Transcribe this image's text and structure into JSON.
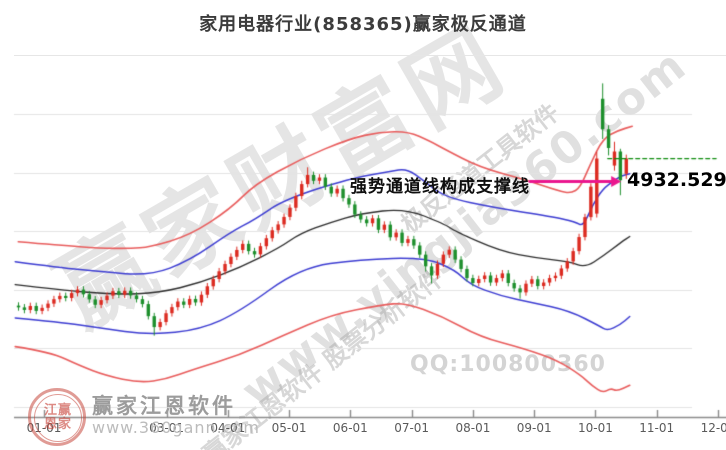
{
  "header": {
    "title": "家用电器行业(858365)赢家极反通道"
  },
  "annotation": {
    "text": "强势通道线构成支撑线",
    "value_label": "4932.5294",
    "value": 4932.5294,
    "arrow": {
      "from_d": 8.93,
      "to_d": 10.42,
      "v": 4925
    }
  },
  "watermarks": {
    "big": "赢家财富网",
    "site_diagonal": "www.yingjia360.com",
    "diag_a": "赢家江恩软件 股票分析软件",
    "diag_b": "极反通道工具软件",
    "qq": "QQ:100800360",
    "footer_brand": "赢家江恩软件",
    "footer_site": "www.360gann.com",
    "logo_rows": [
      "江赢",
      "恩家"
    ]
  },
  "colors": {
    "up": "#dc2a20",
    "down": "#1d8f2c",
    "channel_red": "#e85b5b",
    "channel_blue": "#3b3bd1",
    "mid_black": "#2a2a2a",
    "dash_green": "#0a8a0a",
    "arrow": "#ea168e",
    "grid": "#e3e3e3",
    "axis_line": "#8a8a8a"
  },
  "axis": {
    "y_ticks": [
      5500,
      5000,
      4500,
      4000,
      3500,
      3000
    ],
    "y_min": 3000,
    "y_max": 5500,
    "x_ticks": [
      {
        "m": 1,
        "label": "01-01"
      },
      {
        "m": 3,
        "label": "03-01"
      },
      {
        "m": 4,
        "label": "04-01"
      },
      {
        "m": 5,
        "label": "05-01"
      },
      {
        "m": 6,
        "label": "06-01"
      },
      {
        "m": 7,
        "label": "07-01"
      },
      {
        "m": 8,
        "label": "08-01"
      },
      {
        "m": 9,
        "label": "09-01"
      },
      {
        "m": 10,
        "label": "10-01"
      },
      {
        "m": 11,
        "label": "11-01"
      },
      {
        "m": 12,
        "label": "12-01"
      }
    ]
  },
  "chart_data": {
    "type": "candlestick",
    "title": "家用电器行业(858365)赢家极反通道",
    "x_axis_months": [
      1,
      12
    ],
    "ylim": [
      3000,
      5500
    ],
    "grid": true,
    "candle_start_d": 0.576,
    "candle_step_d": 0.0963,
    "candles_ohlc": [
      [
        3865,
        3890,
        3825,
        3850
      ],
      [
        3850,
        3875,
        3803,
        3828
      ],
      [
        3828,
        3887,
        3803,
        3862
      ],
      [
        3862,
        3887,
        3795,
        3820
      ],
      [
        3820,
        3871,
        3795,
        3846
      ],
      [
        3846,
        3907,
        3821,
        3882
      ],
      [
        3882,
        3945,
        3857,
        3920
      ],
      [
        3920,
        3973,
        3895,
        3948
      ],
      [
        3948,
        3973,
        3905,
        3930
      ],
      [
        3930,
        3997,
        3905,
        3972
      ],
      [
        3972,
        4027,
        3947,
        4002
      ],
      [
        4002,
        4027,
        3937,
        3962
      ],
      [
        3962,
        3987,
        3893,
        3918
      ],
      [
        3918,
        3943,
        3847,
        3872
      ],
      [
        3872,
        3937,
        3847,
        3912
      ],
      [
        3912,
        3975,
        3887,
        3950
      ],
      [
        3950,
        4013,
        3925,
        3988
      ],
      [
        3988,
        4013,
        3933,
        3958
      ],
      [
        3958,
        4017,
        3933,
        3992
      ],
      [
        3992,
        4017,
        3927,
        3952
      ],
      [
        3952,
        3977,
        3895,
        3920
      ],
      [
        3920,
        3945,
        3853,
        3878
      ],
      [
        3878,
        3903,
        3750,
        3775
      ],
      [
        3775,
        3800,
        3612,
        3682
      ],
      [
        3682,
        3750,
        3657,
        3725
      ],
      [
        3725,
        3825,
        3700,
        3800
      ],
      [
        3800,
        3877,
        3775,
        3852
      ],
      [
        3852,
        3925,
        3827,
        3900
      ],
      [
        3900,
        3925,
        3847,
        3872
      ],
      [
        3872,
        3947,
        3847,
        3922
      ],
      [
        3922,
        3947,
        3867,
        3892
      ],
      [
        3892,
        3983,
        3867,
        3958
      ],
      [
        3958,
        4055,
        3933,
        4030
      ],
      [
        4030,
        4117,
        4005,
        4092
      ],
      [
        4092,
        4183,
        4067,
        4158
      ],
      [
        4158,
        4245,
        4133,
        4220
      ],
      [
        4220,
        4307,
        4195,
        4282
      ],
      [
        4282,
        4365,
        4257,
        4340
      ],
      [
        4340,
        4417,
        4315,
        4392
      ],
      [
        4392,
        4417,
        4305,
        4330
      ],
      [
        4330,
        4355,
        4277,
        4302
      ],
      [
        4302,
        4397,
        4277,
        4372
      ],
      [
        4372,
        4465,
        4347,
        4440
      ],
      [
        4440,
        4533,
        4415,
        4508
      ],
      [
        4508,
        4583,
        4483,
        4558
      ],
      [
        4558,
        4647,
        4533,
        4622
      ],
      [
        4622,
        4725,
        4597,
        4700
      ],
      [
        4700,
        4825,
        4675,
        4800
      ],
      [
        4800,
        4927,
        4775,
        4902
      ],
      [
        4902,
        5042,
        4877,
        4980
      ],
      [
        4980,
        5005,
        4905,
        4930
      ],
      [
        4930,
        4983,
        4905,
        4958
      ],
      [
        4958,
        4983,
        4855,
        4880
      ],
      [
        4880,
        4905,
        4797,
        4822
      ],
      [
        4822,
        4887,
        4797,
        4862
      ],
      [
        4862,
        4887,
        4757,
        4782
      ],
      [
        4782,
        4807,
        4703,
        4728
      ],
      [
        4728,
        4753,
        4617,
        4642
      ],
      [
        4642,
        4667,
        4575,
        4600
      ],
      [
        4600,
        4625,
        4543,
        4568
      ],
      [
        4568,
        4635,
        4543,
        4610
      ],
      [
        4610,
        4635,
        4487,
        4512
      ],
      [
        4512,
        4581,
        4487,
        4556
      ],
      [
        4556,
        4581,
        4423,
        4448
      ],
      [
        4448,
        4513,
        4423,
        4488
      ],
      [
        4488,
        4513,
        4375,
        4400
      ],
      [
        4400,
        4457,
        4375,
        4432
      ],
      [
        4432,
        4457,
        4353,
        4378
      ],
      [
        4378,
        4403,
        4275,
        4300
      ],
      [
        4300,
        4325,
        4160,
        4200
      ],
      [
        4200,
        4225,
        4058,
        4122
      ],
      [
        4122,
        4247,
        4097,
        4222
      ],
      [
        4222,
        4325,
        4197,
        4300
      ],
      [
        4300,
        4367,
        4275,
        4342
      ],
      [
        4342,
        4367,
        4233,
        4258
      ],
      [
        4258,
        4283,
        4153,
        4178
      ],
      [
        4178,
        4203,
        4075,
        4100
      ],
      [
        4100,
        4125,
        4033,
        4058
      ],
      [
        4058,
        4117,
        4033,
        4092
      ],
      [
        4092,
        4147,
        4067,
        4122
      ],
      [
        4122,
        4147,
        4037,
        4062
      ],
      [
        4062,
        4125,
        4037,
        4100
      ],
      [
        4100,
        4165,
        4075,
        4140
      ],
      [
        4140,
        4165,
        4033,
        4058
      ],
      [
        4058,
        4083,
        3987,
        4012
      ],
      [
        4012,
        4037,
        3928,
        3978
      ],
      [
        3978,
        4077,
        3953,
        4052
      ],
      [
        4052,
        4115,
        4027,
        4090
      ],
      [
        4090,
        4115,
        4007,
        4032
      ],
      [
        4032,
        4087,
        4007,
        4062
      ],
      [
        4062,
        4125,
        4037,
        4100
      ],
      [
        4100,
        4145,
        4075,
        4120
      ],
      [
        4120,
        4207,
        4095,
        4182
      ],
      [
        4182,
        4267,
        4157,
        4242
      ],
      [
        4242,
        4355,
        4217,
        4330
      ],
      [
        4330,
        4475,
        4305,
        4450
      ],
      [
        4450,
        4645,
        4425,
        4620
      ],
      [
        4620,
        4905,
        4595,
        4880
      ],
      [
        4650,
        5175,
        4620,
        5120
      ],
      [
        5630,
        5758,
        5290,
        5370
      ],
      [
        5370,
        5400,
        5150,
        5210
      ],
      [
        5060,
        5260,
        5020,
        5180
      ],
      [
        5180,
        5200,
        4810,
        4935
      ],
      [
        4990,
        5150,
        4950,
        5120
      ]
    ],
    "channel_lines": [
      {
        "name": "upper_red_strong",
        "color_key": "channel_red",
        "width": 1.6,
        "points": [
          [
            0.58,
            4410
          ],
          [
            1.26,
            4380
          ],
          [
            1.91,
            4355
          ],
          [
            2.4,
            4352
          ],
          [
            2.73,
            4365
          ],
          [
            3.38,
            4465
          ],
          [
            4.04,
            4690
          ],
          [
            4.44,
            4900
          ],
          [
            5.18,
            5115
          ],
          [
            5.99,
            5290
          ],
          [
            6.48,
            5345
          ],
          [
            6.94,
            5352
          ],
          [
            7.3,
            5268
          ],
          [
            7.54,
            5200
          ],
          [
            8.11,
            5045
          ],
          [
            8.85,
            4940
          ],
          [
            9.42,
            4840
          ],
          [
            9.6,
            4825
          ],
          [
            9.75,
            4870
          ],
          [
            9.91,
            5065
          ],
          [
            10.12,
            5290
          ],
          [
            10.37,
            5360
          ],
          [
            10.6,
            5395
          ]
        ]
      },
      {
        "name": "upper_blue",
        "color_key": "channel_blue",
        "width": 1.5,
        "points": [
          [
            0.53,
            4240
          ],
          [
            1.26,
            4190
          ],
          [
            1.91,
            4155
          ],
          [
            2.73,
            4120
          ],
          [
            3.38,
            4250
          ],
          [
            4.04,
            4490
          ],
          [
            4.44,
            4600
          ],
          [
            4.92,
            4770
          ],
          [
            5.99,
            4950
          ],
          [
            6.65,
            5010
          ],
          [
            6.92,
            5035
          ],
          [
            7.2,
            4930
          ],
          [
            7.54,
            4790
          ],
          [
            8.36,
            4700
          ],
          [
            9.29,
            4625
          ],
          [
            9.67,
            4580
          ],
          [
            9.8,
            4540
          ],
          [
            9.96,
            4730
          ],
          [
            10.12,
            4860
          ],
          [
            10.3,
            4930
          ],
          [
            10.43,
            4975
          ],
          [
            10.56,
            4990
          ]
        ]
      },
      {
        "name": "middle_black",
        "color_key": "mid_black",
        "width": 1.3,
        "points": [
          [
            0.53,
            4045
          ],
          [
            1.26,
            4000
          ],
          [
            2.16,
            3958
          ],
          [
            2.89,
            3975
          ],
          [
            3.55,
            4060
          ],
          [
            4.2,
            4190
          ],
          [
            4.85,
            4360
          ],
          [
            5.18,
            4480
          ],
          [
            5.67,
            4575
          ],
          [
            6.16,
            4650
          ],
          [
            6.89,
            4695
          ],
          [
            7.54,
            4560
          ],
          [
            7.71,
            4500
          ],
          [
            8.44,
            4330
          ],
          [
            9.05,
            4270
          ],
          [
            9.58,
            4240
          ],
          [
            9.83,
            4190
          ],
          [
            10.12,
            4285
          ],
          [
            10.43,
            4410
          ],
          [
            10.56,
            4455
          ]
        ]
      },
      {
        "name": "lower_blue",
        "color_key": "channel_blue",
        "width": 1.5,
        "points": [
          [
            0.53,
            3760
          ],
          [
            1.26,
            3725
          ],
          [
            1.91,
            3675
          ],
          [
            2.73,
            3615
          ],
          [
            3.55,
            3660
          ],
          [
            4.2,
            3815
          ],
          [
            5.18,
            4190
          ],
          [
            6.16,
            4260
          ],
          [
            7.22,
            4275
          ],
          [
            7.71,
            4170
          ],
          [
            7.95,
            4045
          ],
          [
            8.44,
            3950
          ],
          [
            8.98,
            3890
          ],
          [
            9.58,
            3820
          ],
          [
            10.07,
            3690
          ],
          [
            10.19,
            3650
          ],
          [
            10.4,
            3700
          ],
          [
            10.56,
            3772
          ]
        ]
      },
      {
        "name": "lower_red_weak",
        "color_key": "channel_red",
        "width": 1.6,
        "points": [
          [
            0.53,
            3515
          ],
          [
            1.1,
            3470
          ],
          [
            1.6,
            3350
          ],
          [
            2.0,
            3270
          ],
          [
            2.57,
            3205
          ],
          [
            3.0,
            3240
          ],
          [
            3.43,
            3320
          ],
          [
            4.2,
            3445
          ],
          [
            4.9,
            3610
          ],
          [
            5.7,
            3790
          ],
          [
            6.5,
            3870
          ],
          [
            6.89,
            3890
          ],
          [
            7.5,
            3775
          ],
          [
            8.11,
            3600
          ],
          [
            8.85,
            3495
          ],
          [
            9.37,
            3400
          ],
          [
            9.75,
            3275
          ],
          [
            9.95,
            3180
          ],
          [
            10.12,
            3120
          ],
          [
            10.25,
            3160
          ],
          [
            10.35,
            3135
          ],
          [
            10.56,
            3185
          ]
        ]
      }
    ],
    "support_dash_line": {
      "value": 5120,
      "from_d": 10.2,
      "to_d": 11.97
    }
  }
}
